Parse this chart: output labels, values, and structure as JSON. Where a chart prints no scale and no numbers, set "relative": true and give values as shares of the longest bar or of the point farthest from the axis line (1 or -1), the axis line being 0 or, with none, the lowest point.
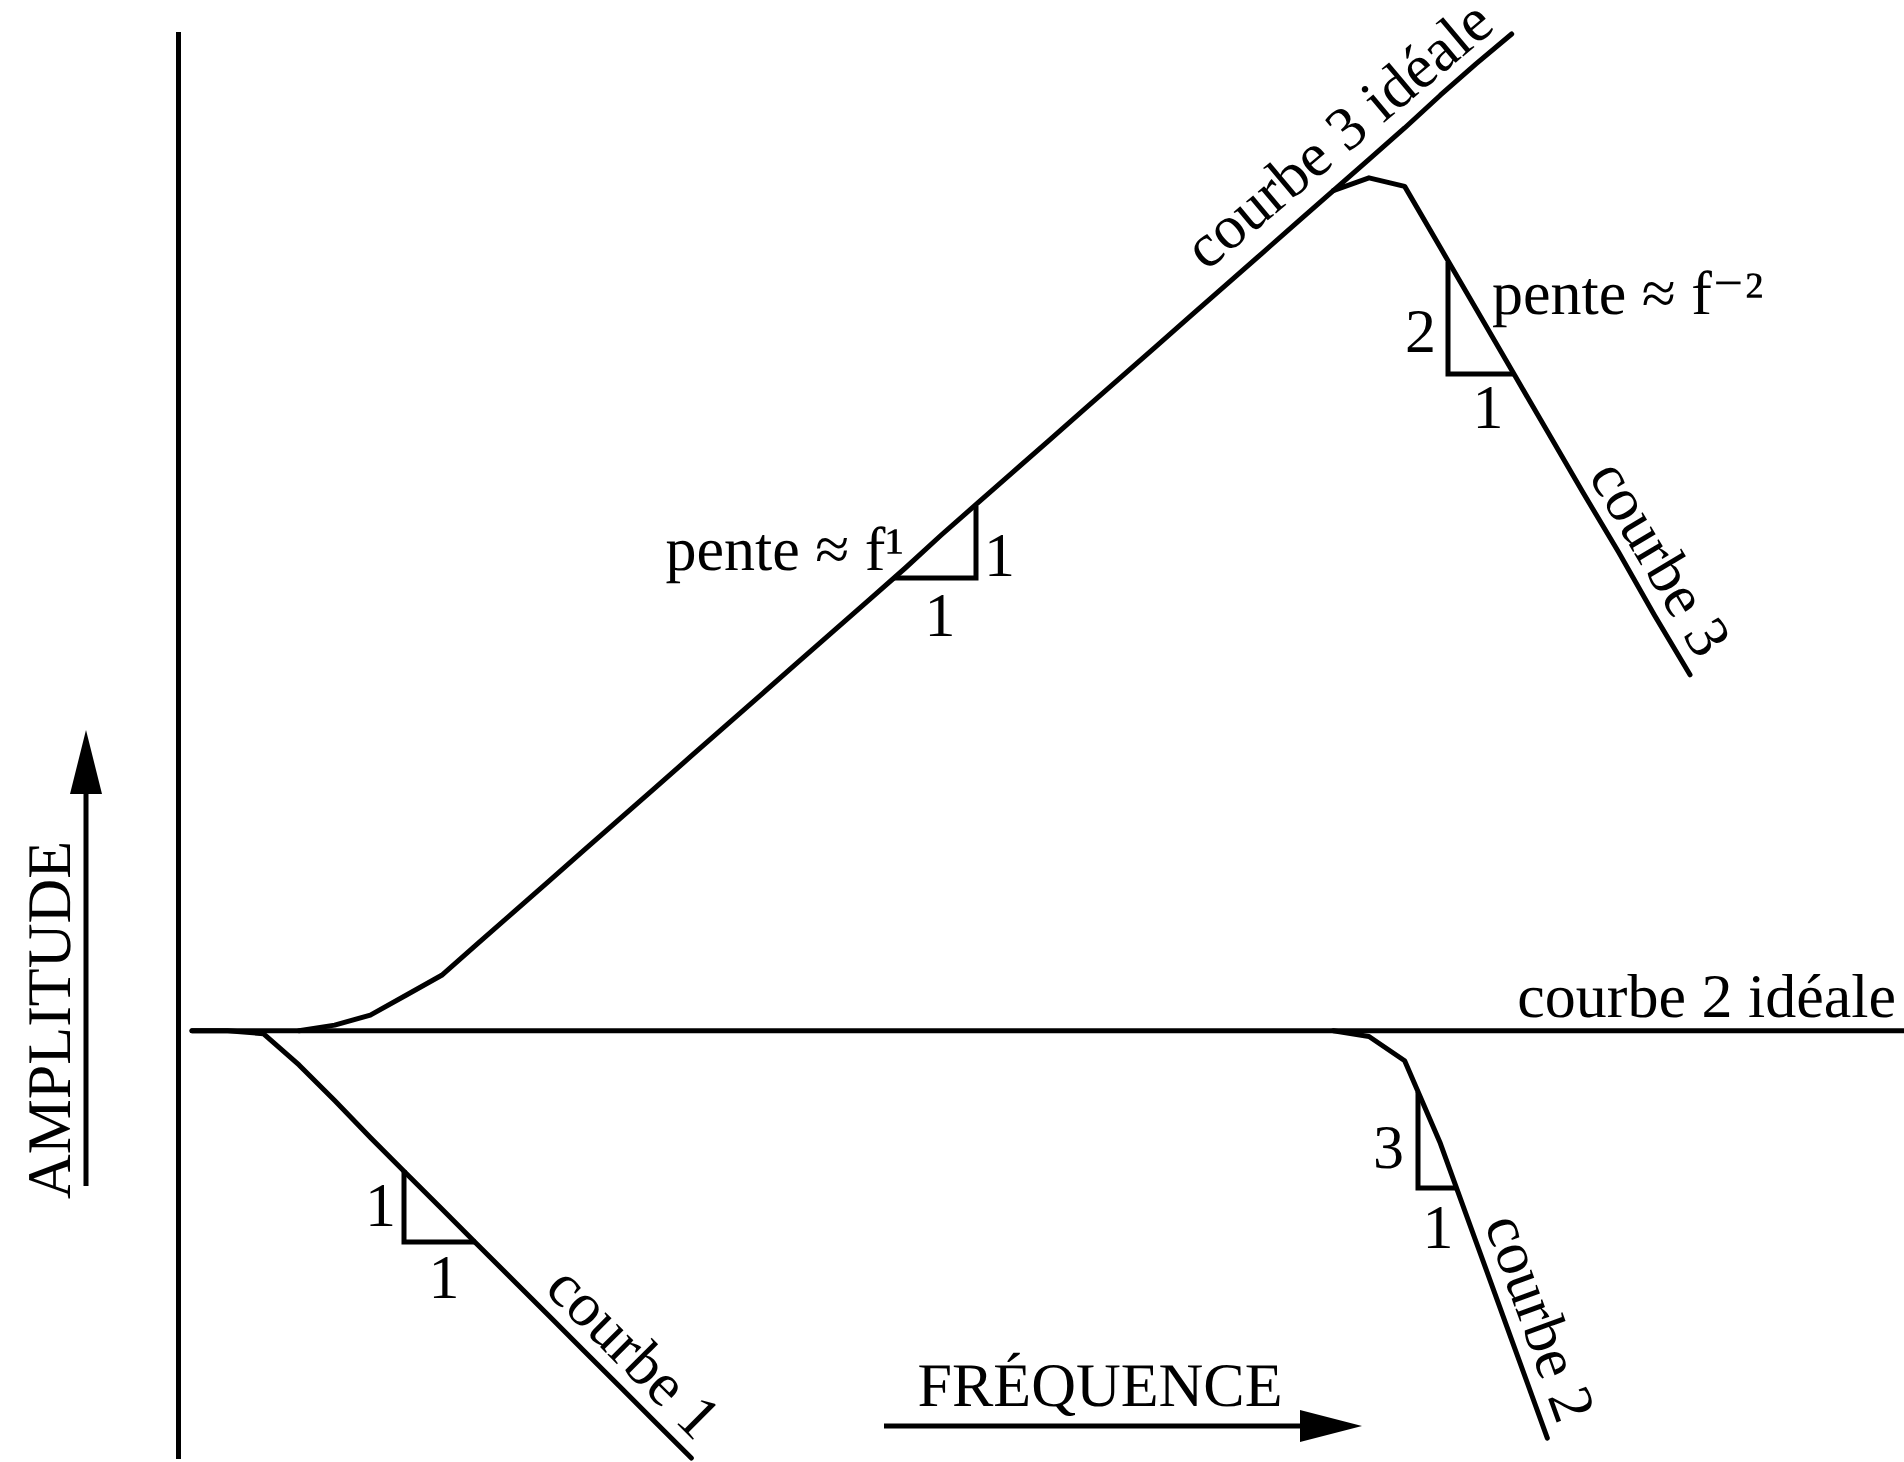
{
  "chart_data": {
    "type": "line",
    "relative": true,
    "xlabel": "FRÉQUENCE",
    "ylabel": "AMPLITUDE",
    "marker": "none",
    "line_style": "solid",
    "tick_labels": false,
    "categories": [
      null,
      null,
      null,
      null,
      null,
      null,
      null,
      null,
      null,
      null,
      null,
      null,
      null,
      null,
      null,
      null,
      null,
      null,
      null,
      null,
      null,
      null,
      null,
      null,
      null,
      null,
      null,
      null,
      null,
      null,
      null,
      null,
      null,
      null,
      null,
      null,
      null,
      null,
      null,
      null,
      null,
      null,
      null,
      null,
      null,
      null,
      null,
      null,
      null
    ],
    "series": [
      {
        "name": "courbe 3 idéale",
        "color": "#000000",
        "values": [
          null,
          null,
          null,
          0.3,
          0.304,
          0.311,
          0.325,
          0.339,
          0.361,
          0.383,
          0.405,
          0.427,
          0.449,
          0.471,
          0.493,
          0.515,
          0.537,
          0.559,
          0.581,
          0.603,
          0.625,
          0.648,
          0.67,
          0.692,
          0.714,
          0.736,
          0.758,
          0.78,
          0.802,
          0.824,
          0.846,
          0.868,
          0.89,
          0.912,
          0.934,
          0.957,
          0.979,
          1,
          null,
          null,
          null,
          null,
          null,
          null,
          null,
          null,
          null,
          null,
          null
        ]
      },
      {
        "name": "courbe 3",
        "color": "#000000",
        "values": [
          null,
          null,
          null,
          null,
          null,
          null,
          null,
          null,
          null,
          null,
          null,
          null,
          null,
          null,
          null,
          null,
          null,
          null,
          null,
          null,
          null,
          null,
          null,
          null,
          null,
          null,
          null,
          null,
          null,
          null,
          null,
          null,
          0.89,
          0.899,
          0.893,
          0.85,
          0.807,
          0.764,
          0.721,
          0.678,
          0.636,
          0.592,
          0.55,
          null,
          null,
          null,
          null,
          null,
          null
        ]
      },
      {
        "name": "courbe 2 idéale",
        "color": "#000000",
        "values": [
          0.3,
          0.3,
          0.3,
          0.3,
          0.3,
          0.3,
          0.3,
          0.3,
          0.3,
          0.3,
          0.3,
          0.3,
          0.3,
          0.3,
          0.3,
          0.3,
          0.3,
          0.3,
          0.3,
          0.3,
          0.3,
          0.3,
          0.3,
          0.3,
          0.3,
          0.3,
          0.3,
          0.3,
          0.3,
          0.3,
          0.3,
          0.3,
          0.3,
          0.3,
          0.3,
          0.3,
          0.3,
          0.3,
          0.3,
          0.3,
          0.3,
          0.3,
          0.3,
          0.3,
          0.3,
          0.3,
          0.3,
          0.3,
          0.3
        ]
      },
      {
        "name": "courbe 1",
        "color": "#000000",
        "values": [
          0.3,
          0.3,
          0.298,
          0.276,
          0.251,
          0.225,
          0.2,
          0.175,
          0.15,
          0.125,
          0.1,
          0.075,
          0.05,
          0.025,
          0,
          null,
          null,
          null,
          null,
          null,
          null,
          null,
          null,
          null,
          null,
          null,
          null,
          null,
          null,
          null,
          null,
          null,
          null,
          null,
          null,
          null,
          null,
          null,
          null,
          null,
          null,
          null,
          null,
          null,
          null,
          null,
          null,
          null,
          null
        ]
      },
      {
        "name": "courbe 2",
        "color": "#000000",
        "values": [
          null,
          null,
          null,
          null,
          null,
          null,
          null,
          null,
          null,
          null,
          null,
          null,
          null,
          null,
          null,
          null,
          null,
          null,
          null,
          null,
          null,
          null,
          null,
          null,
          null,
          null,
          null,
          null,
          null,
          null,
          null,
          null,
          0.3,
          0.296,
          0.279,
          0.221,
          0.152,
          0.083,
          0.014,
          null,
          null,
          null,
          null,
          null,
          null,
          null,
          null,
          null,
          null
        ]
      }
    ],
    "annotations": [
      "pente ≈ f¹",
      "1",
      "1",
      "pente ≈ f⁻²",
      "2",
      "1",
      "1",
      "1",
      "3",
      "1"
    ]
  }
}
